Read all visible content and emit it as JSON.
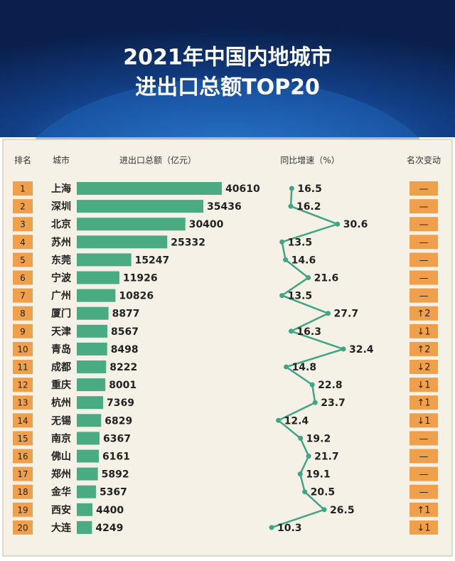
{
  "chart_data": {
    "type": "bar",
    "title_lines": [
      "2021年中国内地城市",
      "进出口总额TOP20"
    ],
    "rank_header": "排名",
    "category_header": "城市",
    "change_header": "名次变动",
    "ranks": [
      1,
      2,
      3,
      4,
      5,
      6,
      7,
      8,
      9,
      10,
      11,
      12,
      13,
      14,
      15,
      16,
      17,
      18,
      19,
      20
    ],
    "categories": [
      "上海",
      "深圳",
      "北京",
      "苏州",
      "东莞",
      "宁波",
      "广州",
      "厦门",
      "天津",
      "青岛",
      "成都",
      "重庆",
      "杭州",
      "无锡",
      "南京",
      "佛山",
      "郑州",
      "金华",
      "西安",
      "大连"
    ],
    "series": [
      {
        "name": "进出口总额（亿元）",
        "color": "#4aaa80",
        "values": [
          40610,
          35436,
          30400,
          25332,
          15247,
          11926,
          10826,
          8877,
          8567,
          8498,
          8222,
          8001,
          7369,
          6829,
          6367,
          6161,
          5892,
          5367,
          4400,
          4249
        ]
      },
      {
        "name": "同比增速（%）",
        "color": "#3ea585",
        "values": [
          16.5,
          16.2,
          30.6,
          13.5,
          14.6,
          21.6,
          13.5,
          27.7,
          16.3,
          32.4,
          14.8,
          22.8,
          23.7,
          12.4,
          19.2,
          21.7,
          19.1,
          20.5,
          26.5,
          10.3
        ]
      }
    ],
    "rank_change": [
      "—",
      "—",
      "—",
      "—",
      "—",
      "—",
      "—",
      "↑2",
      "↓1",
      "↑2",
      "↓2",
      "↓1",
      "↑1",
      "↓1",
      "—",
      "—",
      "—",
      "—",
      "↑1",
      "↓1"
    ]
  }
}
